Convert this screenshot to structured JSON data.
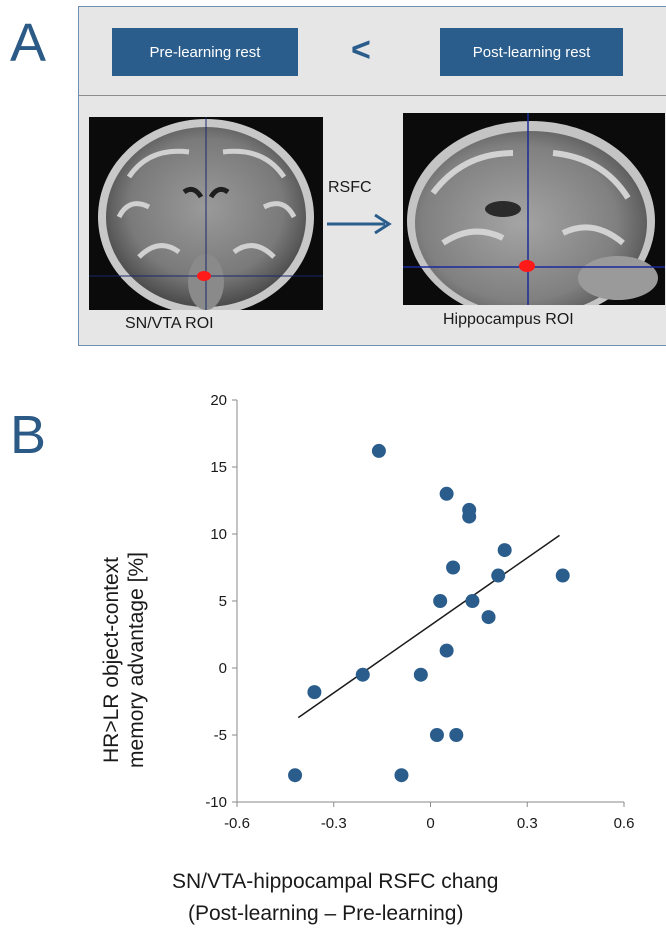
{
  "panel_a": {
    "letter": "A",
    "pre_label": "Pre-learning rest",
    "comparison": "<",
    "post_label": "Post-learning rest",
    "connector_label": "RSFC",
    "left_roi_label": "SN/VTA ROI",
    "right_roi_label": "Hippocampus ROI",
    "images": [
      {
        "name": "coronal-mri",
        "roi": "SN/VTA",
        "roi_color": "#ff0000"
      },
      {
        "name": "sagittal-mri",
        "roi": "Hippocampus",
        "roi_color": "#ff0000"
      }
    ],
    "accent_color": "#2b5d8c"
  },
  "panel_b": {
    "letter": "B",
    "chart_data": {
      "type": "scatter",
      "title": "",
      "xlabel": "SN/VTA-hippocampal RSFC chang",
      "xlabel_line2": "(Post-learning – Pre-learning)",
      "ylabel": "HR>LR object-context",
      "ylabel_line2": "memory advantage [%]",
      "xlim": [
        -0.6,
        0.6
      ],
      "ylim": [
        -10,
        20
      ],
      "x_ticks": [
        -0.6,
        -0.3,
        0,
        0.3,
        0.6
      ],
      "x_tick_labels": [
        "-0.6",
        "-0.3",
        "0",
        "0.3",
        "0.6"
      ],
      "y_ticks": [
        -10,
        -5,
        0,
        5,
        10,
        15,
        20
      ],
      "y_tick_labels": [
        "-10",
        "-5",
        "0",
        "5",
        "10",
        "15",
        "20"
      ],
      "grid": false,
      "point_color": "#2b5d8c",
      "points": [
        {
          "x": -0.16,
          "y": 16.2
        },
        {
          "x": 0.05,
          "y": 13.0
        },
        {
          "x": 0.12,
          "y": 11.8
        },
        {
          "x": 0.12,
          "y": 11.3
        },
        {
          "x": 0.23,
          "y": 8.8
        },
        {
          "x": 0.07,
          "y": 7.5
        },
        {
          "x": 0.21,
          "y": 6.9
        },
        {
          "x": 0.41,
          "y": 6.9
        },
        {
          "x": 0.03,
          "y": 5.0
        },
        {
          "x": 0.13,
          "y": 5.0
        },
        {
          "x": 0.18,
          "y": 3.8
        },
        {
          "x": 0.05,
          "y": 1.3
        },
        {
          "x": -0.03,
          "y": -0.5
        },
        {
          "x": -0.21,
          "y": -0.5
        },
        {
          "x": -0.36,
          "y": -1.8
        },
        {
          "x": 0.02,
          "y": -5.0
        },
        {
          "x": 0.08,
          "y": -5.0
        },
        {
          "x": -0.42,
          "y": -8.0
        },
        {
          "x": -0.09,
          "y": -8.0
        }
      ],
      "trendline": {
        "x": [
          -0.41,
          0.4
        ],
        "y": [
          -3.7,
          9.9
        ]
      }
    }
  }
}
